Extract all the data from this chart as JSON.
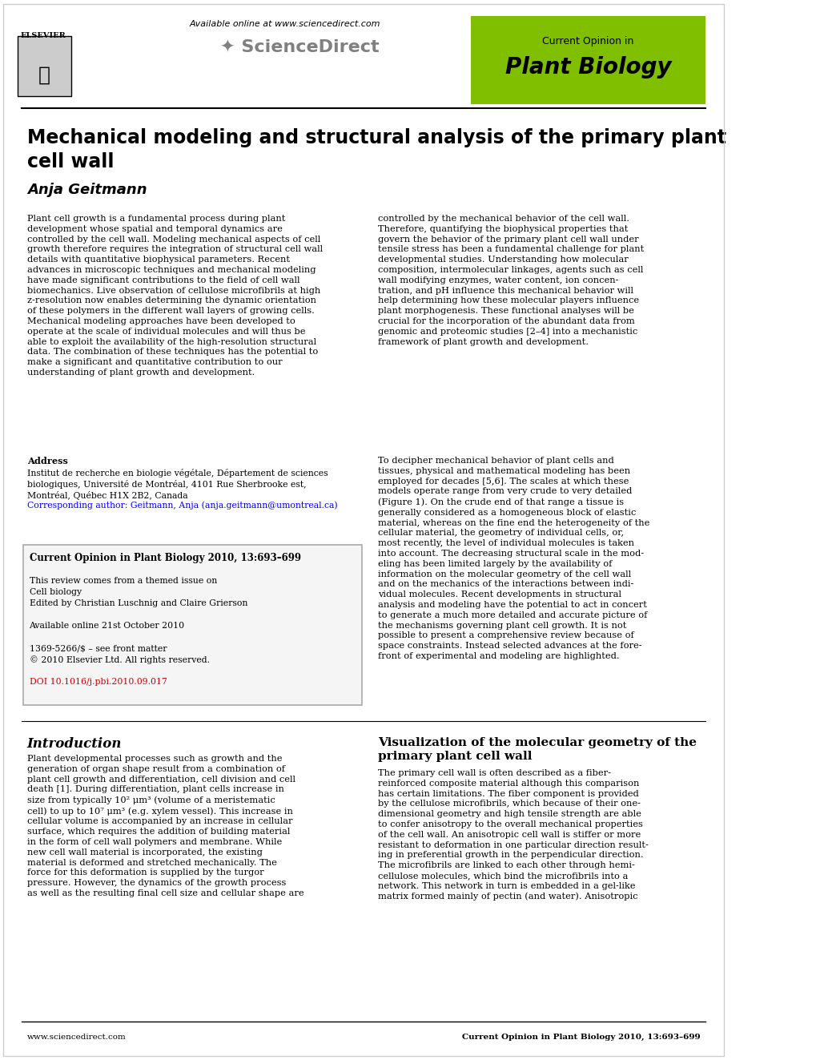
{
  "title": "Mechanical modeling and structural analysis of the primary plant\ncell wall",
  "author": "Anja Geitmann",
  "journal_box_color": "#7FBF00",
  "journal_box_text1": "Current Opinion in",
  "journal_box_text2": "Plant Biology",
  "sciencedirect_url": "Available online at www.sciencedirect.com",
  "sciencedirect_text": "ScienceDirect",
  "elsevier_text": "ELSEVIER",
  "footer_left": "www.sciencedirect.com",
  "footer_right": "Current Opinion in Plant Biology 2010, 13:693–699",
  "abstract_left": "Plant cell growth is a fundamental process during plant\ndevelopment whose spatial and temporal dynamics are\ncontrolled by the cell wall. Modeling mechanical aspects of cell\ngrowth therefore requires the integration of structural cell wall\ndetails with quantitative biophysical parameters. Recent\nadvances in microscopic techniques and mechanical modeling\nhave made significant contributions to the field of cell wall\nbiomechanics. Live observation of cellulose microfibrils at high\nz-resolution now enables determining the dynamic orientation\nof these polymers in the different wall layers of growing cells.\nMechanical modeling approaches have been developed to\noperate at the scale of individual molecules and will thus be\nable to exploit the availability of the high-resolution structural\ndata. The combination of these techniques has the potential to\nmake a significant and quantitative contribution to our\nunderstanding of plant growth and development.",
  "abstract_right": "controlled by the mechanical behavior of the cell wall.\nTherefore, quantifying the biophysical properties that\ngovern the behavior of the primary plant cell wall under\ntensile stress has been a fundamental challenge for plant\ndevelopmental studies. Understanding how molecular\ncomposition, intermolecular linkages, agents such as cell\nwall modifying enzymes, water content, ion concen-\ntration, and pH influence this mechanical behavior will\nhelp determining how these molecular players influence\nplant morphogenesis. These functional analyses will be\ncrucial for the incorporation of the abundant data from\ngenomic and proteomic studies [2–4] into a mechanistic\nframework of plant growth and development.",
  "address_label": "Address",
  "address_text": "Institut de recherche en biologie végétale, Département de sciences\nbiologiques, Université de Montréal, 4101 Rue Sherbrooke est,\nMontréal, Québec H1X 2B2, Canada",
  "corresponding_text": "Corresponding author: Geitmann, Anja (anja.geitmann@umontreal.ca)",
  "box_content": "Current Opinion in Plant Biology 2010, 13:693–699\n\nThis review comes from a themed issue on\nCell biology\nEdited by Christian Luschnig and Claire Grierson\n\nAvailable online 21st October 2010\n\n1369-5266/$ – see front matter\n© 2010 Elsevier Ltd. All rights reserved.\n\nDOI 10.1016/j.pbi.2010.09.017",
  "intro_heading": "Introduction",
  "intro_text": "Plant developmental processes such as growth and the\ngeneration of organ shape result from a combination of\nplant cell growth and differentiation, cell division and cell\ndeath [1]. During differentiation, plant cells increase in\nsize from typically 10² μm³ (volume of a meristematic\ncell) to up to 10⁷ μm³ (e.g. xylem vessel). This increase in\ncellular volume is accompanied by an increase in cellular\nsurface, which requires the addition of building material\nin the form of cell wall polymers and membrane. While\nnew cell wall material is incorporated, the existing\nmaterial is deformed and stretched mechanically. The\nforce for this deformation is supplied by the turgor\npressure. However, the dynamics of the growth process\nas well as the resulting final cell size and cellular shape are",
  "viz_heading": "Visualization of the molecular geometry of the\nprimary plant cell wall",
  "viz_text": "The primary cell wall is often described as a fiber-\nreinforced composite material although this comparison\nhas certain limitations. The fiber component is provided\nby the cellulose microfibrils, which because of their one-\ndimensional geometry and high tensile strength are able\nto confer anisotropy to the overall mechanical properties\nof the cell wall. An anisotropic cell wall is stiffer or more\nresistant to deformation in one particular direction result-\ning in preferential growth in the perpendicular direction.\nThe microfibrils are linked to each other through hemi-\ncellulose molecules, which bind the microfibrils into a\nnetwork. This network in turn is embedded in a gel-like\nmatrix formed mainly of pectin (and water). Anisotropic",
  "para2_right": "To decipher mechanical behavior of plant cells and\ntissues, physical and mathematical modeling has been\nemployed for decades [5,6]. The scales at which these\nmodels operate range from very crude to very detailed\n(Figure 1). On the crude end of that range a tissue is\ngenerally considered as a homogeneous block of elastic\nmaterial, whereas on the fine end the heterogeneity of the\ncellular material, the geometry of individual cells, or,\nmost recently, the level of individual molecules is taken\ninto account. The decreasing structural scale in the mod-\neling has been limited largely by the availability of\ninformation on the molecular geometry of the cell wall\nand on the mechanics of the interactions between indi-\nvidual molecules. Recent developments in structural\nanalysis and modeling have the potential to act in concert\nto generate a much more detailed and accurate picture of\nthe mechanisms governing plant cell growth. It is not\npossible to present a comprehensive review because of\nspace constraints. Instead selected advances at the fore-\nfront of experimental and modeling are highlighted.",
  "bg_color": "#ffffff",
  "text_color": "#000000",
  "link_color": "#0000FF"
}
